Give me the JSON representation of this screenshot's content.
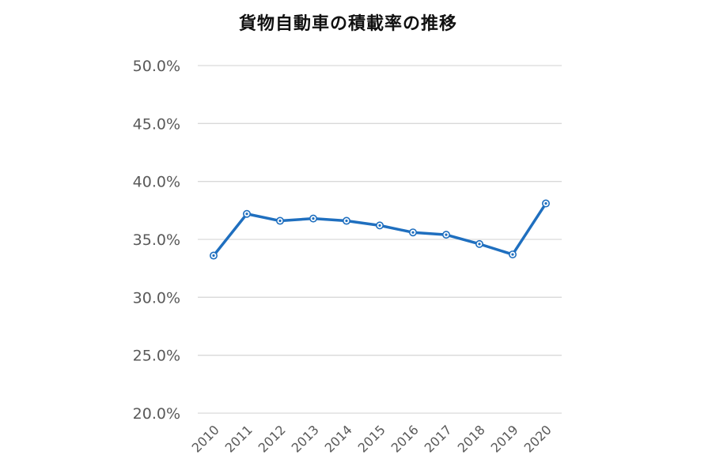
{
  "chart_data": {
    "type": "line",
    "title": "貨物自動車の積載率の推移",
    "xlabel": "",
    "ylabel": "",
    "categories": [
      "2010",
      "2011",
      "2012",
      "2013",
      "2014",
      "2015",
      "2016",
      "2017",
      "2018",
      "2019",
      "2020"
    ],
    "series": [
      {
        "name": "積載率",
        "color": "#1f6fbf",
        "values": [
          33.6,
          37.2,
          36.6,
          36.8,
          36.6,
          36.2,
          35.6,
          35.4,
          34.6,
          33.7,
          38.1
        ]
      }
    ],
    "ylim": [
      20,
      50
    ],
    "yticks": [
      "20.0%",
      "25.0%",
      "30.0%",
      "35.0%",
      "40.0%",
      "45.0%",
      "50.0%"
    ],
    "grid": true,
    "legend": "none",
    "markers": "hollow-circle"
  }
}
